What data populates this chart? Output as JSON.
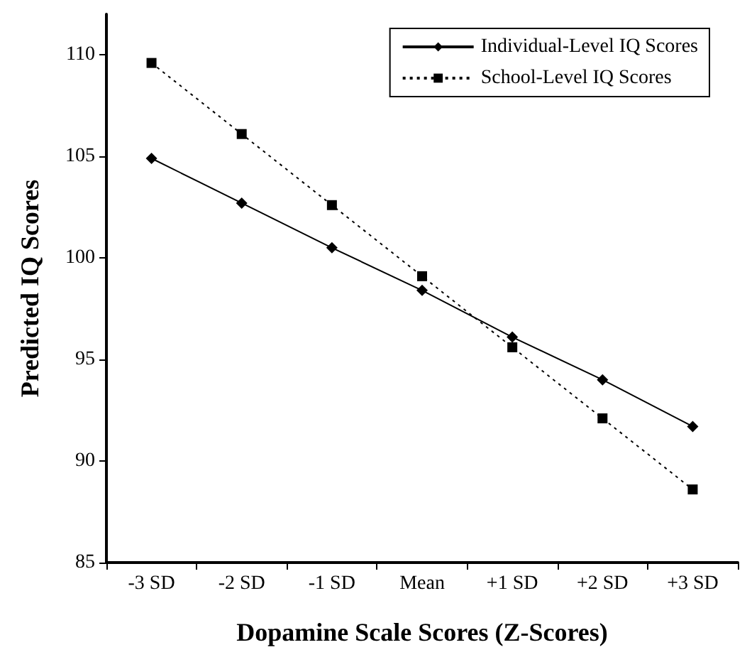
{
  "chart_data": {
    "type": "line",
    "xlabel": "Dopamine Scale Scores (Z-Scores)",
    "ylabel": "Predicted IQ Scores",
    "categories": [
      "-3 SD",
      "-2 SD",
      "-1 SD",
      "Mean",
      "+1 SD",
      "+2 SD",
      "+3 SD"
    ],
    "series": [
      {
        "name": "Individual-Level IQ Scores",
        "color": "#000000",
        "marker": "diamond",
        "line_style": "solid",
        "values": [
          104.9,
          102.7,
          100.5,
          98.4,
          96.1,
          94.0,
          91.7
        ]
      },
      {
        "name": "School-Level IQ Scores",
        "color": "#000000",
        "marker": "square",
        "line_style": "dotted",
        "values": [
          109.6,
          106.1,
          102.6,
          99.1,
          95.6,
          92.1,
          88.6
        ]
      }
    ],
    "ylim": [
      85,
      112
    ],
    "yticks": [
      85,
      90,
      95,
      100,
      105,
      110
    ],
    "grid": false,
    "legend": "top right"
  }
}
